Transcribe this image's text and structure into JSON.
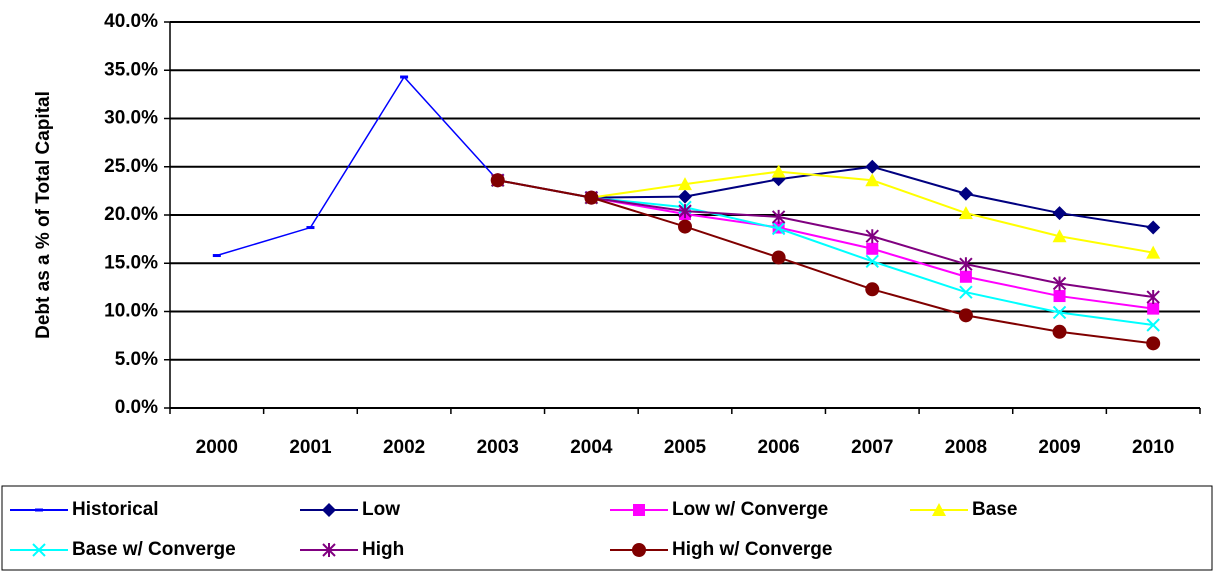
{
  "chart_data": {
    "type": "line",
    "y_label": "Debt as a % of Total Capital",
    "categories": [
      "2000",
      "2001",
      "2002",
      "2003",
      "2004",
      "2005",
      "2006",
      "2007",
      "2008",
      "2009",
      "2010"
    ],
    "ylim": [
      0,
      40
    ],
    "yticks": [
      {
        "value": 0,
        "label": "0.0%"
      },
      {
        "value": 5,
        "label": "5.0%"
      },
      {
        "value": 10,
        "label": "10.0%"
      },
      {
        "value": 15,
        "label": "15.0%"
      },
      {
        "value": 20,
        "label": "20.0%"
      },
      {
        "value": 25,
        "label": "25.0%"
      },
      {
        "value": 30,
        "label": "30.0%"
      },
      {
        "value": 35,
        "label": "35.0%"
      },
      {
        "value": 40,
        "label": "40.0%"
      }
    ],
    "grid": true,
    "series": [
      {
        "name": "Historical",
        "color": "#0000ff",
        "marker": "dash",
        "values": [
          15.8,
          18.7,
          34.3,
          23.6,
          null,
          null,
          null,
          null,
          null,
          null,
          null
        ]
      },
      {
        "name": "Low",
        "color": "#000080",
        "marker": "diamond",
        "values": [
          null,
          null,
          null,
          23.6,
          21.8,
          21.9,
          23.7,
          25.0,
          22.2,
          20.2,
          18.7
        ]
      },
      {
        "name": "Low w/ Converge",
        "color": "#ff00ff",
        "marker": "square",
        "values": [
          null,
          null,
          null,
          23.6,
          21.8,
          20.1,
          18.7,
          16.5,
          13.6,
          11.6,
          10.3
        ]
      },
      {
        "name": "Base",
        "color": "#ffff00",
        "marker": "triangle",
        "values": [
          null,
          null,
          null,
          23.6,
          21.8,
          23.2,
          24.5,
          23.6,
          20.2,
          17.8,
          16.1
        ]
      },
      {
        "name": "Base w/ Converge",
        "color": "#00ffff",
        "marker": "x",
        "values": [
          null,
          null,
          null,
          23.6,
          21.8,
          20.8,
          18.6,
          15.2,
          12.0,
          9.9,
          8.6
        ]
      },
      {
        "name": "High",
        "color": "#800080",
        "marker": "asterisk",
        "values": [
          null,
          null,
          null,
          23.6,
          21.8,
          20.4,
          19.8,
          17.8,
          14.9,
          12.9,
          11.5
        ]
      },
      {
        "name": "High w/ Converge",
        "color": "#800000",
        "marker": "circle",
        "values": [
          null,
          null,
          null,
          23.6,
          21.8,
          18.8,
          15.6,
          12.3,
          9.6,
          7.9,
          6.7
        ]
      }
    ]
  }
}
